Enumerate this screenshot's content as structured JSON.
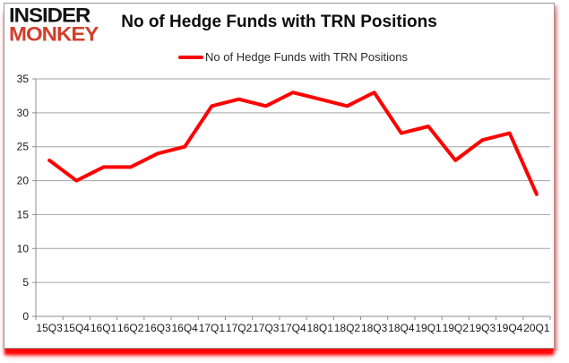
{
  "logo": {
    "line1": "INSIDER",
    "line2": "MONKEY",
    "accent_color": "#d0402c"
  },
  "title": "No of Hedge Funds with TRN Positions",
  "legend": {
    "label": "No of Hedge Funds with TRN Positions",
    "marker_color": "#ff0000"
  },
  "chart_data": {
    "type": "line",
    "title": "No of Hedge Funds with TRN Positions",
    "categories": [
      "15Q3",
      "15Q4",
      "16Q1",
      "16Q2",
      "16Q3",
      "16Q4",
      "17Q1",
      "17Q2",
      "17Q3",
      "17Q4",
      "18Q1",
      "18Q2",
      "18Q3",
      "18Q4",
      "19Q1",
      "19Q2",
      "19Q3",
      "19Q4",
      "20Q1"
    ],
    "series": [
      {
        "name": "No of Hedge Funds with TRN Positions",
        "color": "#ff0000",
        "values": [
          23,
          20,
          22,
          22,
          24,
          25,
          31,
          32,
          31,
          33,
          32,
          31,
          33,
          27,
          28,
          23,
          26,
          27,
          18
        ]
      }
    ],
    "xlabel": "",
    "ylabel": "",
    "ylim": [
      0,
      35
    ],
    "ytick_step": 5,
    "grid": true,
    "grid_color": "#a3a3a3",
    "axis_color": "#8c8c8c",
    "legend_position": "top-center"
  }
}
